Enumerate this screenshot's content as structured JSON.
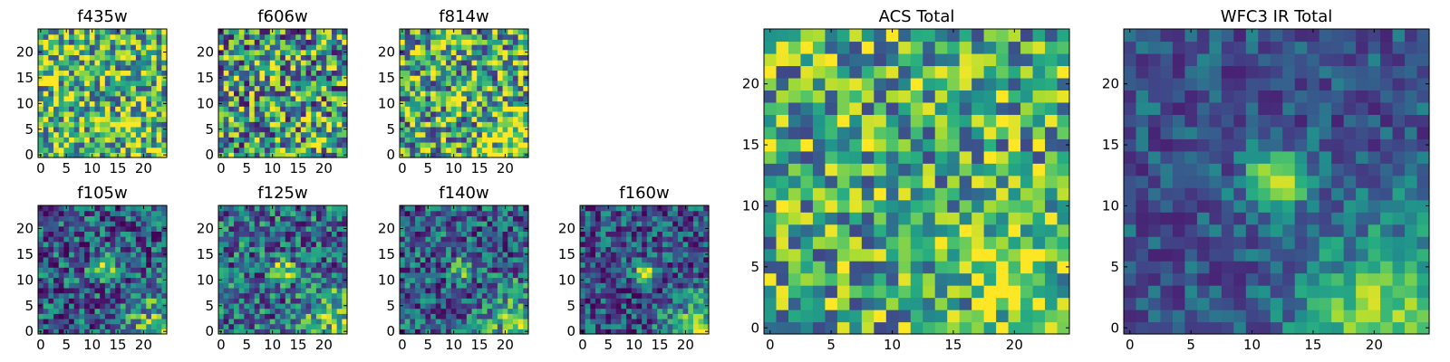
{
  "chart_data": [
    {
      "type": "heatmap",
      "title": "f435w",
      "colormap": "viridis",
      "grid": false,
      "xlim": [
        0,
        25
      ],
      "ylim": [
        0,
        25
      ],
      "xticks": [
        0,
        5,
        10,
        15,
        20
      ],
      "yticks": [
        0,
        5,
        10,
        15,
        20
      ],
      "image_size": [
        25,
        25
      ],
      "features": [
        {
          "type": "noise",
          "level": 0.68,
          "amp": 0.42
        },
        {
          "type": "blob",
          "x": 20,
          "y": 3,
          "sigma": 3,
          "amp": 0.1
        }
      ]
    },
    {
      "type": "heatmap",
      "title": "f606w",
      "colormap": "viridis",
      "grid": false,
      "xlim": [
        0,
        25
      ],
      "ylim": [
        0,
        25
      ],
      "xticks": [
        0,
        5,
        10,
        15,
        20
      ],
      "yticks": [
        0,
        5,
        10,
        15,
        20
      ],
      "image_size": [
        25,
        25
      ],
      "features": [
        {
          "type": "noise",
          "level": 0.55,
          "amp": 0.5
        },
        {
          "type": "blob",
          "x": 21,
          "y": 3,
          "sigma": 3,
          "amp": 0.2
        }
      ]
    },
    {
      "type": "heatmap",
      "title": "f814w",
      "colormap": "viridis",
      "grid": false,
      "xlim": [
        0,
        25
      ],
      "ylim": [
        0,
        25
      ],
      "xticks": [
        0,
        5,
        10,
        15,
        20
      ],
      "yticks": [
        0,
        5,
        10,
        15,
        20
      ],
      "image_size": [
        25,
        25
      ],
      "features": [
        {
          "type": "noise",
          "level": 0.62,
          "amp": 0.45
        },
        {
          "type": "blob",
          "x": 21,
          "y": 3,
          "sigma": 3.5,
          "amp": 0.3
        },
        {
          "type": "blob",
          "x": 12,
          "y": 11,
          "sigma": 1.5,
          "amp": 0.15
        }
      ]
    },
    {
      "type": "heatmap",
      "title": "f105w",
      "colormap": "viridis",
      "grid": false,
      "xlim": [
        0,
        25
      ],
      "ylim": [
        0,
        25
      ],
      "xticks": [
        0,
        5,
        10,
        15,
        20
      ],
      "yticks": [
        0,
        5,
        10,
        15,
        20
      ],
      "image_size": [
        25,
        25
      ],
      "features": [
        {
          "type": "noise",
          "level": 0.32,
          "amp": 0.35
        },
        {
          "type": "blob",
          "x": 12,
          "y": 12,
          "sigma": 1.6,
          "amp": 0.55
        },
        {
          "type": "gradient",
          "x": 24,
          "y": 0,
          "range": 13,
          "amp": 0.45
        }
      ]
    },
    {
      "type": "heatmap",
      "title": "f125w",
      "colormap": "viridis",
      "grid": false,
      "xlim": [
        0,
        25
      ],
      "ylim": [
        0,
        25
      ],
      "xticks": [
        0,
        5,
        10,
        15,
        20
      ],
      "yticks": [
        0,
        5,
        10,
        15,
        20
      ],
      "image_size": [
        25,
        25
      ],
      "features": [
        {
          "type": "noise",
          "level": 0.38,
          "amp": 0.35
        },
        {
          "type": "blob",
          "x": 12,
          "y": 12,
          "sigma": 1.6,
          "amp": 0.5
        },
        {
          "type": "gradient",
          "x": 24,
          "y": 0,
          "range": 13,
          "amp": 0.45
        }
      ]
    },
    {
      "type": "heatmap",
      "title": "f140w",
      "colormap": "viridis",
      "grid": false,
      "xlim": [
        0,
        25
      ],
      "ylim": [
        0,
        25
      ],
      "xticks": [
        0,
        5,
        10,
        15,
        20
      ],
      "yticks": [
        0,
        5,
        10,
        15,
        20
      ],
      "image_size": [
        25,
        25
      ],
      "features": [
        {
          "type": "noise",
          "level": 0.33,
          "amp": 0.33
        },
        {
          "type": "blob",
          "x": 12,
          "y": 12,
          "sigma": 1.5,
          "amp": 0.55
        },
        {
          "type": "gradient",
          "x": 24,
          "y": 0,
          "range": 13,
          "amp": 0.5
        }
      ]
    },
    {
      "type": "heatmap",
      "title": "f160w",
      "colormap": "viridis",
      "grid": false,
      "xlim": [
        0,
        25
      ],
      "ylim": [
        0,
        25
      ],
      "xticks": [
        0,
        5,
        10,
        15,
        20
      ],
      "yticks": [
        0,
        5,
        10,
        15,
        20
      ],
      "image_size": [
        25,
        25
      ],
      "features": [
        {
          "type": "noise",
          "level": 0.28,
          "amp": 0.3
        },
        {
          "type": "blob",
          "x": 12,
          "y": 12,
          "sigma": 1.5,
          "amp": 0.55
        },
        {
          "type": "gradient",
          "x": 24,
          "y": 0,
          "range": 12,
          "amp": 0.55
        }
      ]
    },
    {
      "type": "heatmap",
      "title": "ACS Total",
      "colormap": "viridis",
      "grid": false,
      "xlim": [
        0,
        25
      ],
      "ylim": [
        0,
        25
      ],
      "xticks": [
        0,
        5,
        10,
        15,
        20
      ],
      "yticks": [
        0,
        5,
        10,
        15,
        20
      ],
      "image_size": [
        25,
        25
      ],
      "features": [
        {
          "type": "noise",
          "level": 0.64,
          "amp": 0.38
        },
        {
          "type": "blob",
          "x": 21,
          "y": 4,
          "sigma": 4,
          "amp": 0.18
        }
      ]
    },
    {
      "type": "heatmap",
      "title": "WFC3 IR Total",
      "colormap": "viridis",
      "grid": false,
      "xlim": [
        0,
        25
      ],
      "ylim": [
        0,
        25
      ],
      "xticks": [
        0,
        5,
        10,
        15,
        20
      ],
      "yticks": [
        0,
        5,
        10,
        15,
        20
      ],
      "image_size": [
        25,
        25
      ],
      "features": [
        {
          "type": "noise",
          "level": 0.3,
          "amp": 0.18
        },
        {
          "type": "blob",
          "x": 12,
          "y": 12,
          "sigma": 1.8,
          "amp": 0.6
        },
        {
          "type": "blob",
          "x": 19,
          "y": 1,
          "sigma": 2.5,
          "amp": 0.25
        },
        {
          "type": "gradient",
          "x": 24,
          "y": 0,
          "range": 15,
          "amp": 0.45
        }
      ]
    }
  ]
}
